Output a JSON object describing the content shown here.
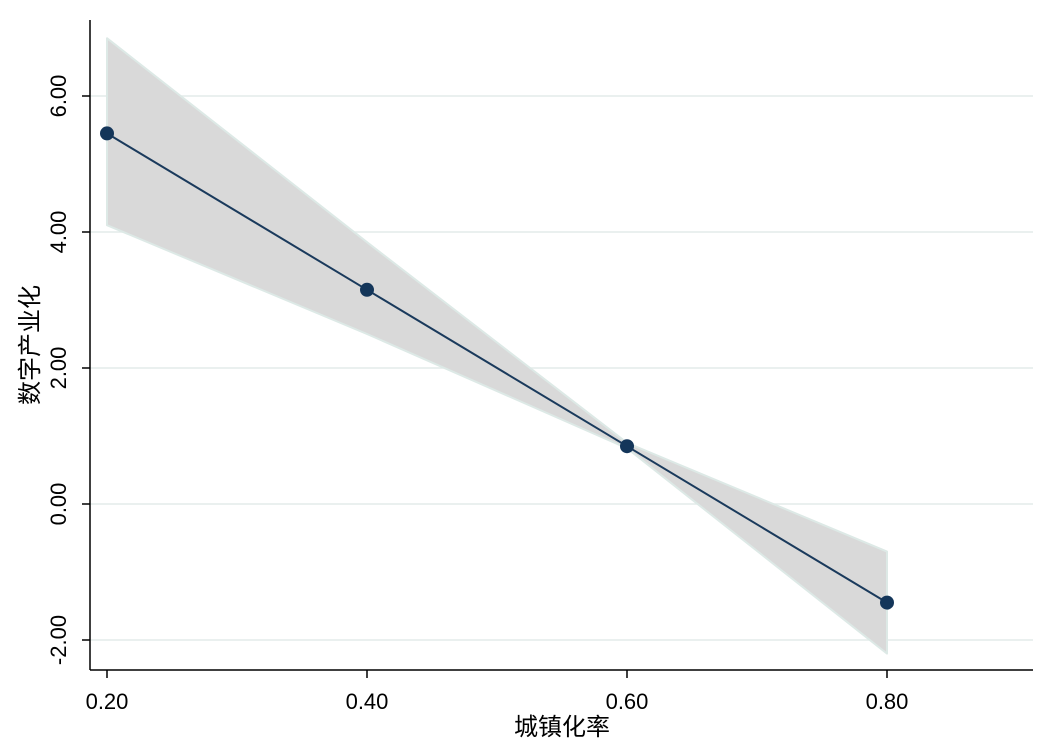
{
  "chart_data": {
    "type": "line",
    "title": "",
    "xlabel": "城镇化率",
    "ylabel": "数字产业化",
    "x_ticks": [
      "0.20",
      "0.40",
      "0.60",
      "0.80"
    ],
    "y_ticks": [
      "-2.00",
      "0.00",
      "2.00",
      "4.00",
      "6.00"
    ],
    "xlim": [
      0.2,
      0.91
    ],
    "ylim": [
      -2.45,
      7.1
    ],
    "grid": "horizontal",
    "series": [
      {
        "x": [
          0.2,
          0.4,
          0.6,
          0.8
        ],
        "y": [
          5.45,
          3.15,
          0.85,
          -1.45
        ]
      }
    ],
    "confidence_band": {
      "x": [
        0.2,
        0.4,
        0.6,
        0.8
      ],
      "lower": [
        4.1,
        2.5,
        0.82,
        -2.2
      ],
      "upper": [
        6.85,
        3.85,
        0.9,
        -0.7
      ]
    },
    "colors": {
      "line": "#1a3a5c",
      "marker": "#14365a",
      "band_fill": "#d9d9d9",
      "band_edge": "#dde9e6",
      "grid": "#e3ecea",
      "axis": "#000000"
    }
  }
}
